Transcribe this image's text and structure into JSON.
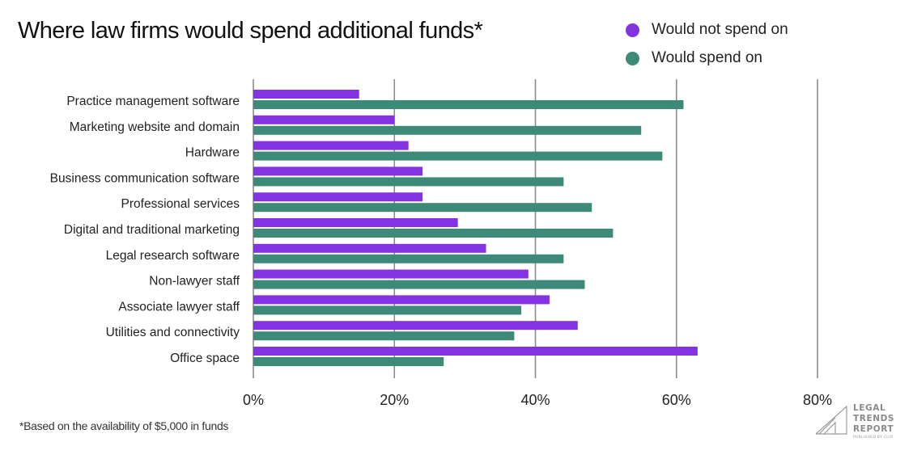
{
  "chart_data": {
    "type": "bar",
    "orientation": "horizontal",
    "title": "Where law firms would spend additional funds*",
    "xlabel": "",
    "ylabel": "",
    "xlim": [
      0,
      80
    ],
    "xticks": [
      0,
      20,
      40,
      60,
      80
    ],
    "tick_labels": [
      "0%",
      "20%",
      "40%",
      "60%",
      "80%"
    ],
    "grid": true,
    "legend_position": "top-right",
    "categories": [
      "Practice management software",
      "Marketing website and domain",
      "Hardware",
      "Business communication software",
      "Professional services",
      "Digital and traditional marketing",
      "Legal research software",
      "Non-lawyer staff",
      "Associate lawyer staff",
      "Utilities and connectivity",
      "Office space"
    ],
    "series": [
      {
        "name": "Would not spend on",
        "color": "#8433e2",
        "values": [
          15,
          20,
          22,
          24,
          24,
          29,
          33,
          39,
          42,
          46,
          63
        ]
      },
      {
        "name": "Would spend on",
        "color": "#3d8a78",
        "values": [
          61,
          55,
          58,
          44,
          48,
          51,
          44,
          47,
          38,
          37,
          27
        ]
      }
    ],
    "footnote": "*Based on the availability of $5,000 in funds"
  },
  "logo": {
    "lines": [
      "LEGAL",
      "TRENDS",
      "REPORT"
    ],
    "sub": "PUBLISHED BY CLIO"
  }
}
